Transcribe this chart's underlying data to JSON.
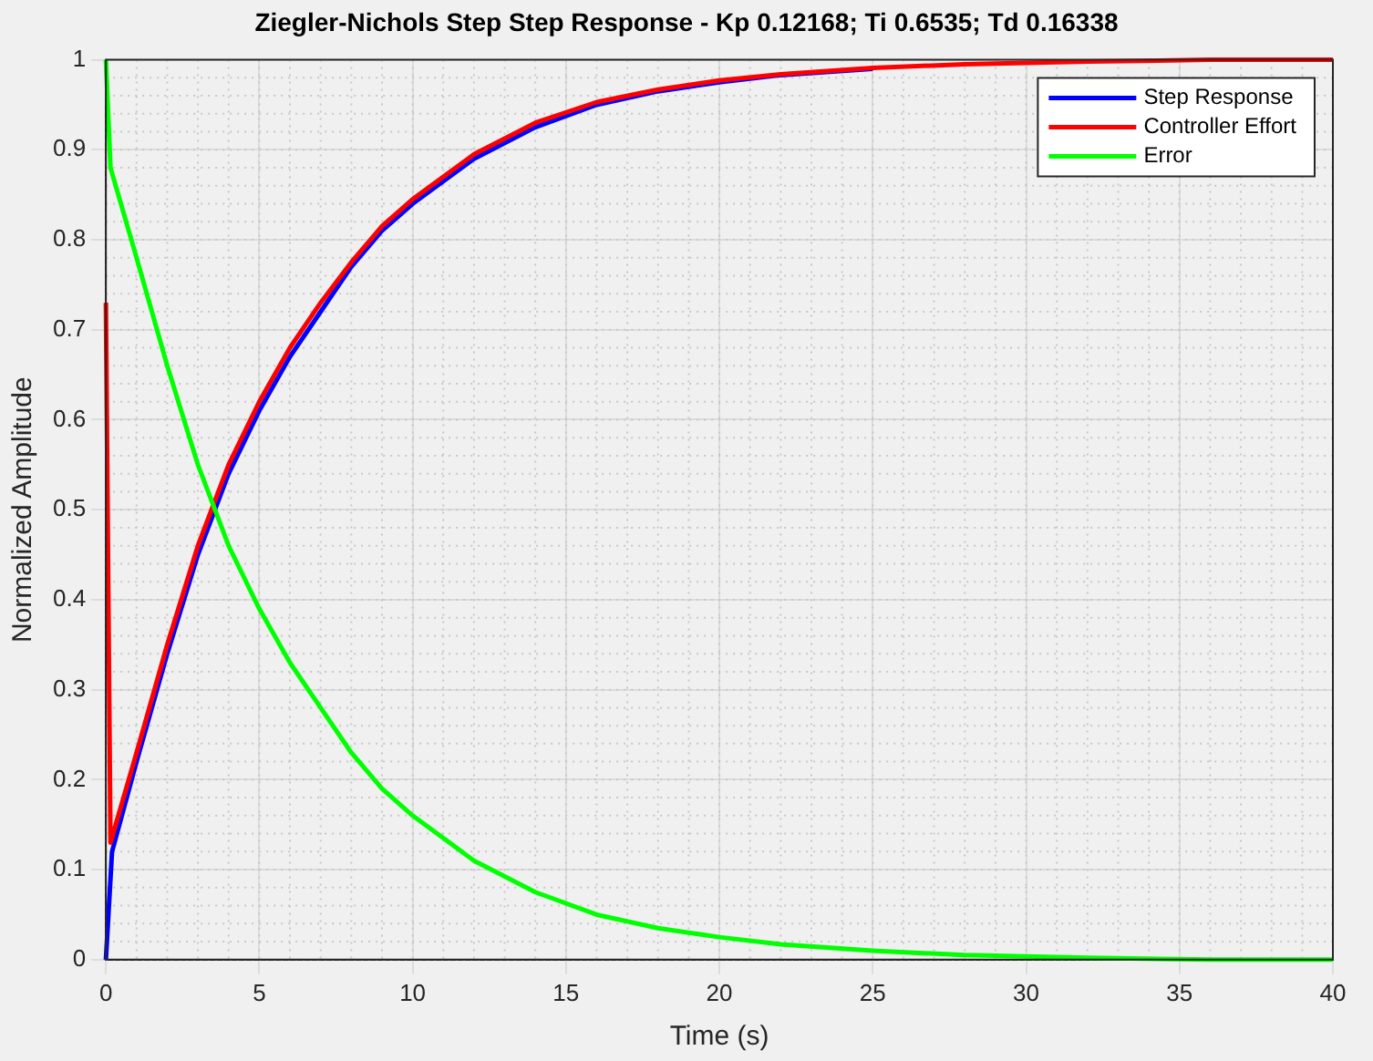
{
  "chart_data": {
    "type": "line",
    "title": "Ziegler-Nichols Step Step Response - Kp 0.12168; Ti 0.6535; Td 0.16338",
    "xlabel": "Time (s)",
    "ylabel": "Normalized Amplitude",
    "xlim": [
      0,
      40
    ],
    "xticks": [
      0,
      5,
      10,
      15,
      20,
      25,
      30,
      35,
      40
    ],
    "ylim": [
      0,
      1
    ],
    "yticks": [
      0,
      0.1,
      0.2,
      0.3,
      0.4,
      0.5,
      0.6,
      0.7,
      0.8,
      0.9,
      1
    ],
    "grid": true,
    "legend": "top right",
    "marker": "none",
    "line_style": "solid",
    "series": [
      {
        "name": "Step Response",
        "color": "#0000ff",
        "x": [
          0,
          0.2,
          1,
          2,
          3,
          4,
          5,
          6,
          7,
          8,
          9,
          10,
          12,
          14,
          16,
          18,
          20,
          22,
          25
        ],
        "values": [
          0,
          0.12,
          0.22,
          0.34,
          0.45,
          0.54,
          0.61,
          0.67,
          0.72,
          0.77,
          0.81,
          0.84,
          0.89,
          0.925,
          0.95,
          0.965,
          0.975,
          0.983,
          0.99
        ]
      },
      {
        "name": "Controller Effort",
        "color": "#ff0000",
        "x": [
          0,
          0.15,
          1,
          2,
          3,
          4,
          5,
          6,
          7,
          8,
          9,
          10,
          12,
          14,
          16,
          18,
          20,
          22,
          25,
          28,
          32,
          36,
          40
        ],
        "values": [
          0.73,
          0.13,
          0.23,
          0.35,
          0.46,
          0.55,
          0.62,
          0.68,
          0.73,
          0.775,
          0.815,
          0.845,
          0.895,
          0.93,
          0.953,
          0.967,
          0.977,
          0.984,
          0.991,
          0.995,
          0.998,
          1,
          1
        ]
      },
      {
        "name": "Error",
        "color": "#00ff00",
        "x": [
          0,
          0.15,
          1,
          2,
          3,
          4,
          5,
          6,
          7,
          8,
          9,
          10,
          12,
          14,
          16,
          18,
          20,
          22,
          25,
          28,
          32,
          36,
          40
        ],
        "values": [
          1,
          0.88,
          0.78,
          0.66,
          0.55,
          0.46,
          0.39,
          0.33,
          0.28,
          0.23,
          0.19,
          0.16,
          0.11,
          0.075,
          0.05,
          0.035,
          0.025,
          0.017,
          0.01,
          0.005,
          0.002,
          0,
          0
        ]
      }
    ]
  }
}
